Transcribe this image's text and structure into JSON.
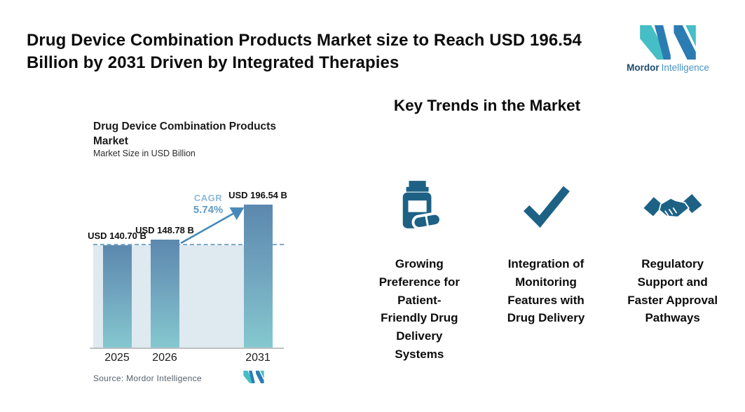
{
  "header": {
    "title": "Drug Device Combination Products Market size to Reach USD 196.54\nBillion by 2031 Driven by Integrated Therapies"
  },
  "brand": {
    "name_bold": "Mordor",
    "name_light": "Intelligence",
    "teal": "#45bec6",
    "blue": "#2c7cb4"
  },
  "chart": {
    "title": "Drug Device Combination Products\nMarket",
    "subtitle": "Market Size in USD Billion",
    "cagr_label": "CAGR",
    "cagr_value": "5.74%",
    "source": "Source: Mordor Intelligence",
    "bar_gradient_top": "#5c88ae",
    "bar_gradient_bottom": "#85c8cf",
    "dashed_line_color": "#7aa9c9",
    "arrow_color": "#4689b9",
    "plot_background": "#dfe9f0"
  },
  "chart_data": {
    "type": "bar",
    "title": "Drug Device Combination Products Market",
    "subtitle": "Market Size in USD Billion",
    "unit": "USD Billion",
    "categories": [
      "2025",
      "2026",
      "2031"
    ],
    "values": [
      140.7,
      148.78,
      196.54
    ],
    "value_labels": [
      "USD 140.70 B",
      "USD 148.78 B",
      "USD 196.54 B"
    ],
    "cagr": "5.74%",
    "ylim": [
      0,
      210
    ],
    "grid": false,
    "legend": false,
    "annotations": [
      "Dashed horizontal reference line at 2025 market-size level",
      "Diagonal growth arrow from 2026 bar to 2031 bar labeled CAGR 5.74%"
    ]
  },
  "trends": {
    "heading": "Key Trends in the Market",
    "accent_color": "#1d6185",
    "items": [
      {
        "icon": "pill-bottle-icon",
        "text": "Growing\nPreference for\nPatient-\nFriendly Drug\nDelivery\nSystems"
      },
      {
        "icon": "checkmark-icon",
        "text": "Integration of\nMonitoring\nFeatures with\nDrug Delivery"
      },
      {
        "icon": "handshake-icon",
        "text": "Regulatory\nSupport and\nFaster Approval\nPathways"
      }
    ]
  }
}
